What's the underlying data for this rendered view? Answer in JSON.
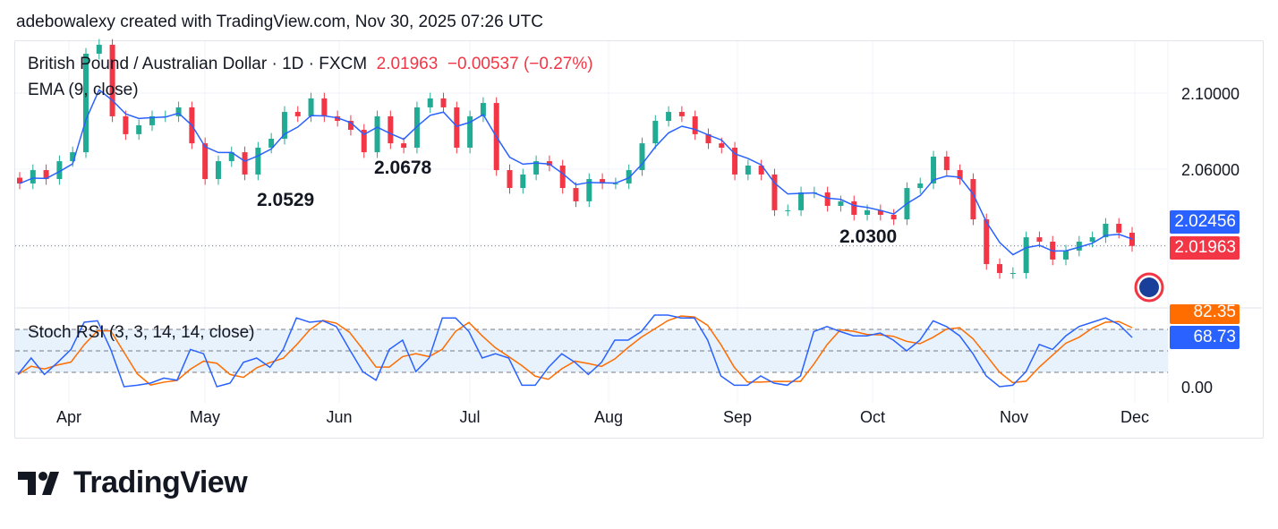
{
  "credit": "adebowalexy created with TradingView.com, Nov 30, 2025 07:26 UTC",
  "header": {
    "symbol": "British Pound / Australian Dollar · 1D · FXCM",
    "price": "2.01963",
    "change": "−0.00537 (−0.27%)",
    "ema_label": "EMA (9, close)",
    "stoch_label": "Stoch RSI (3, 3, 14, 14, close)"
  },
  "chart_data": {
    "type": "candlestick",
    "price_ticks": [
      "2.10000",
      "2.06000"
    ],
    "price_ylim": [
      1.995,
      2.135
    ],
    "months": [
      "Apr",
      "May",
      "Jun",
      "Jul",
      "Aug",
      "Sep",
      "Oct",
      "Nov",
      "Dec"
    ],
    "closes": [
      2.0525,
      2.0595,
      2.0548,
      2.0642,
      2.0689,
      2.1207,
      2.1254,
      2.0878,
      2.0784,
      2.0831,
      2.0878,
      2.0878,
      2.0925,
      2.0736,
      2.0548,
      2.0642,
      2.0689,
      2.0572,
      2.0713,
      2.076,
      2.0901,
      2.0878,
      2.0972,
      2.0878,
      2.0854,
      2.0807,
      2.0689,
      2.0878,
      2.0736,
      2.0713,
      2.0925,
      2.0972,
      2.0925,
      2.0713,
      2.0878,
      2.0948,
      2.0595,
      2.0501,
      2.0572,
      2.0642,
      2.0619,
      2.0501,
      2.0431,
      2.0548,
      2.0525,
      2.0525,
      2.0595,
      2.0736,
      2.0854,
      2.0901,
      2.0878,
      2.0784,
      2.0736,
      2.0713,
      2.0572,
      2.0619,
      2.0572,
      2.0384,
      2.0384,
      2.0478,
      2.0478,
      2.0407,
      2.0431,
      2.036,
      2.0384,
      2.036,
      2.0336,
      2.0501,
      2.0525,
      2.0666,
      2.0595,
      2.0548,
      2.0336,
      2.0101,
      2.0054,
      2.0054,
      2.0242,
      2.0219,
      2.0125,
      2.0172,
      2.0219,
      2.0242,
      2.0313,
      2.0266,
      2.01963
    ],
    "ema_last": "2.02456",
    "last_price": "2.01963",
    "annotations": [
      "2.0529",
      "2.0678",
      "2.0300"
    ],
    "stoch": {
      "ticks": [
        "0.00"
      ],
      "ylim": [
        0,
        100
      ],
      "bands": [
        80,
        50,
        20
      ],
      "k": [
        17,
        40,
        17,
        34,
        52,
        90,
        92,
        52,
        0,
        2,
        5,
        12,
        9,
        52,
        46,
        0,
        5,
        34,
        40,
        27,
        52,
        96,
        90,
        92,
        84,
        52,
        21,
        9,
        52,
        65,
        21,
        40,
        96,
        96,
        77,
        40,
        46,
        40,
        2,
        2,
        27,
        46,
        34,
        17,
        34,
        65,
        65,
        77,
        100,
        100,
        96,
        96,
        65,
        15,
        2,
        2,
        15,
        5,
        2,
        15,
        77,
        84,
        77,
        71,
        71,
        75,
        65,
        50,
        65,
        92,
        84,
        71,
        46,
        15,
        0,
        2,
        21,
        59,
        52,
        71,
        84,
        90,
        96,
        87,
        68.73
      ],
      "k_last": "68.73",
      "d_last": "82.35"
    },
    "colors": {
      "up": "#22ab94",
      "down": "#f23645",
      "ema": "#2962ff",
      "k": "#2962ff",
      "d": "#ff6d00"
    }
  },
  "brand": "TradingView"
}
